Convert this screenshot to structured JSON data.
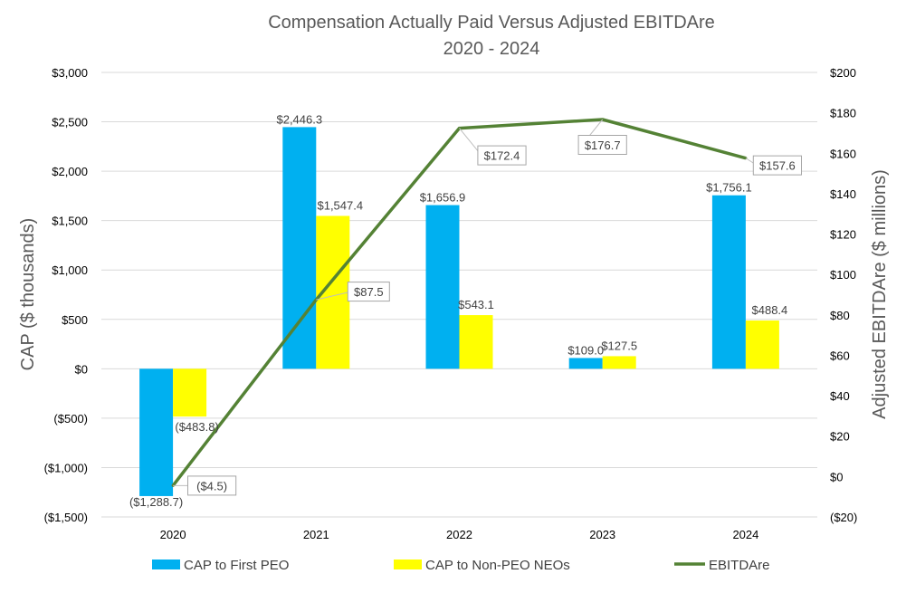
{
  "chart_data": {
    "type": "bar",
    "title": "Compensation Actually Paid Versus Adjusted EBITDAre",
    "subtitle": "2020 - 2024",
    "categories": [
      "2020",
      "2021",
      "2022",
      "2023",
      "2024"
    ],
    "ylabel": "CAP ($ thousands)",
    "y2label": "Adjusted EBITDAre ($ millions)",
    "ylim": [
      -1500,
      3000
    ],
    "y2lim": [
      -20,
      200
    ],
    "yticks": [
      "($1,500)",
      "($1,000)",
      "($500)",
      "$0",
      "$500",
      "$1,000",
      "$1,500",
      "$2,000",
      "$2,500",
      "$3,000"
    ],
    "y2ticks": [
      "($20)",
      "$0",
      "$20",
      "$40",
      "$60",
      "$80",
      "$100",
      "$120",
      "$140",
      "$160",
      "$180",
      "$200"
    ],
    "series": [
      {
        "name": "CAP to First PEO",
        "type": "bar",
        "axis": "left",
        "color": "#00B0F0",
        "values": [
          -1288.7,
          2446.3,
          1656.9,
          109.0,
          1756.1
        ],
        "labels": [
          "($1,288.7)",
          "$2,446.3",
          "$1,656.9",
          "$109.0",
          "$1,756.1"
        ]
      },
      {
        "name": "CAP to Non-PEO NEOs",
        "type": "bar",
        "axis": "left",
        "color": "#FFFF00",
        "values": [
          -483.8,
          1547.4,
          543.1,
          127.5,
          488.4
        ],
        "labels": [
          "($483.8)",
          "$1,547.4",
          "$543.1",
          "$127.5",
          "$488.4"
        ]
      },
      {
        "name": "EBITDAre",
        "type": "line",
        "axis": "right",
        "color": "#548235",
        "values": [
          -4.5,
          87.5,
          172.4,
          176.7,
          157.6
        ],
        "labels": [
          "($4.5)",
          "$87.5",
          "$172.4",
          "$176.7",
          "$157.6"
        ]
      }
    ],
    "legend_position": "bottom"
  }
}
